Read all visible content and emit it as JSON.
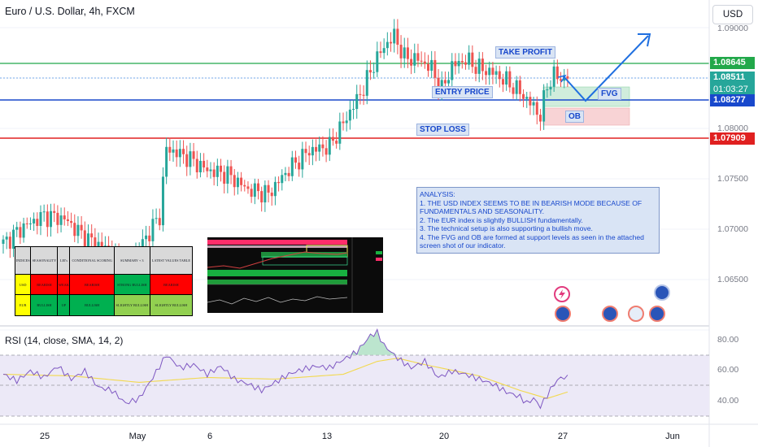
{
  "header": {
    "symbol_title": "Euro / U.S. Dollar, 4h, FXCM",
    "currency": "USD"
  },
  "price_labels": {
    "take_profit_level": "1.08645",
    "current_price": "1.08511",
    "countdown": "01:03:27",
    "entry_level": "1.08277",
    "stop_loss_level": "1.07909"
  },
  "price_axis": [
    "1.09000",
    "1.08000",
    "1.07500",
    "1.07000",
    "1.06500"
  ],
  "annotations": {
    "take_profit": "TAKE PROFIT",
    "entry_price": "ENTRY PRICE",
    "stop_loss": "STOP LOSS",
    "fvg": "FVG",
    "ob": "OB"
  },
  "analysis": [
    "ANALYSIS:",
    "1. THE USD INDEX SEEMS TO BE IN BEARISH MODE BECAUSE OF FUNDAMENTALS AND SEASONALITY.",
    "2. The EUR index is slightly BULLISH fundamentally.",
    "3. The technical setup is also supporting a bullish move.",
    "4. The FVG and OB are formed at support levels as seen in the attached screen shot of our indicator."
  ],
  "table": {
    "headers": [
      "INDICES",
      "SEASONALITY",
      "LEI's",
      "CONDITIONAL SCORING",
      "SUMMARY + 3",
      "LATEST VALUES TABLE"
    ],
    "rows": [
      {
        "cells": [
          "USD",
          "BEARISH",
          "WEAK",
          "BEARISH",
          "STRONG BULLISH",
          "BEARISH"
        ],
        "colors": [
          "#ffff00",
          "#ff0000",
          "#ff0000",
          "#ff0000",
          "#00b050",
          "#ff0000"
        ]
      },
      {
        "cells": [
          "EUR",
          "BULLISH",
          "UP",
          "BULLISH",
          "SLIGHTLY BULLISH",
          "SLIGHTLY BULLISH"
        ],
        "colors": [
          "#ffff00",
          "#00b050",
          "#00b050",
          "#00b050",
          "#92d050",
          "#92d050"
        ]
      }
    ]
  },
  "rsi": {
    "title": "RSI (14, close, SMA, 14, 2)",
    "axis": [
      "80.00",
      "60.00",
      "40.00"
    ]
  },
  "x_axis": [
    "25",
    "May",
    "6",
    "13",
    "20",
    "27",
    "Jun"
  ],
  "colors": {
    "bull": "#26a69a",
    "bear": "#ef5350",
    "take_profit": "#22a84a",
    "entry": "#1848cc",
    "stop_loss": "#e02020",
    "current": "#26a69a"
  },
  "chart_data": [
    {
      "type": "candlestick",
      "title": "Euro / U.S. Dollar, 4h, FXCM",
      "ylim": [
        1.0615,
        1.0915
      ],
      "x_ticks": [
        "25",
        "May",
        "6",
        "13",
        "20",
        "27",
        "Jun"
      ],
      "anchors": [
        [
          0,
          1.0696
        ],
        [
          6,
          1.0712
        ],
        [
          12,
          1.0722
        ],
        [
          18,
          1.0719
        ],
        [
          24,
          1.0702
        ],
        [
          30,
          1.0692
        ],
        [
          36,
          1.067
        ],
        [
          42,
          1.0702
        ],
        [
          46,
          1.0722
        ],
        [
          48,
          1.0784
        ],
        [
          54,
          1.0776
        ],
        [
          60,
          1.0764
        ],
        [
          66,
          1.076
        ],
        [
          72,
          1.0746
        ],
        [
          78,
          1.0742
        ],
        [
          84,
          1.0765
        ],
        [
          90,
          1.0782
        ],
        [
          96,
          1.0786
        ],
        [
          102,
          1.0818
        ],
        [
          106,
          1.084
        ],
        [
          109,
          1.0862
        ],
        [
          112,
          1.0878
        ],
        [
          115,
          1.0888
        ],
        [
          118,
          1.0868
        ],
        [
          122,
          1.0866
        ],
        [
          126,
          1.0858
        ],
        [
          129,
          1.0838
        ],
        [
          132,
          1.086
        ],
        [
          136,
          1.0866
        ],
        [
          140,
          1.0858
        ],
        [
          144,
          1.0854
        ],
        [
          148,
          1.0846
        ],
        [
          152,
          1.0836
        ],
        [
          155,
          1.0826
        ],
        [
          158,
          1.0814
        ],
        [
          160,
          1.0842
        ],
        [
          162,
          1.0852
        ],
        [
          164,
          1.0848
        ],
        [
          166,
          1.0851
        ]
      ],
      "levels": {
        "take_profit": 1.08645,
        "entry": 1.08277,
        "stop_loss": 1.07909,
        "current": 1.08511
      }
    },
    {
      "type": "line",
      "title": "RSI (14, close, SMA, 14, 2)",
      "ylim": [
        27,
        86
      ],
      "bands": [
        30,
        50,
        70
      ],
      "rsi_anchors": [
        [
          0,
          58
        ],
        [
          4,
          54
        ],
        [
          8,
          60
        ],
        [
          12,
          56
        ],
        [
          16,
          63
        ],
        [
          20,
          55
        ],
        [
          24,
          60
        ],
        [
          28,
          50
        ],
        [
          32,
          48
        ],
        [
          36,
          40
        ],
        [
          40,
          43
        ],
        [
          44,
          56
        ],
        [
          48,
          70
        ],
        [
          52,
          62
        ],
        [
          56,
          64
        ],
        [
          60,
          58
        ],
        [
          64,
          63
        ],
        [
          68,
          55
        ],
        [
          72,
          52
        ],
        [
          76,
          48
        ],
        [
          80,
          53
        ],
        [
          84,
          58
        ],
        [
          88,
          61
        ],
        [
          92,
          63
        ],
        [
          96,
          62
        ],
        [
          100,
          67
        ],
        [
          104,
          72
        ],
        [
          108,
          82
        ],
        [
          110,
          84
        ],
        [
          112,
          76
        ],
        [
          116,
          68
        ],
        [
          120,
          62
        ],
        [
          124,
          66
        ],
        [
          128,
          56
        ],
        [
          132,
          60
        ],
        [
          136,
          58
        ],
        [
          140,
          55
        ],
        [
          144,
          52
        ],
        [
          148,
          47
        ],
        [
          152,
          44
        ],
        [
          154,
          40
        ],
        [
          156,
          43
        ],
        [
          158,
          38
        ],
        [
          160,
          45
        ],
        [
          162,
          52
        ],
        [
          164,
          56
        ],
        [
          166,
          56
        ]
      ],
      "ma_anchors": [
        [
          0,
          58
        ],
        [
          20,
          57
        ],
        [
          40,
          53
        ],
        [
          60,
          56
        ],
        [
          80,
          55
        ],
        [
          100,
          58
        ],
        [
          110,
          66
        ],
        [
          116,
          68
        ],
        [
          124,
          64
        ],
        [
          140,
          57
        ],
        [
          152,
          48
        ],
        [
          160,
          43
        ],
        [
          166,
          47
        ]
      ]
    }
  ]
}
